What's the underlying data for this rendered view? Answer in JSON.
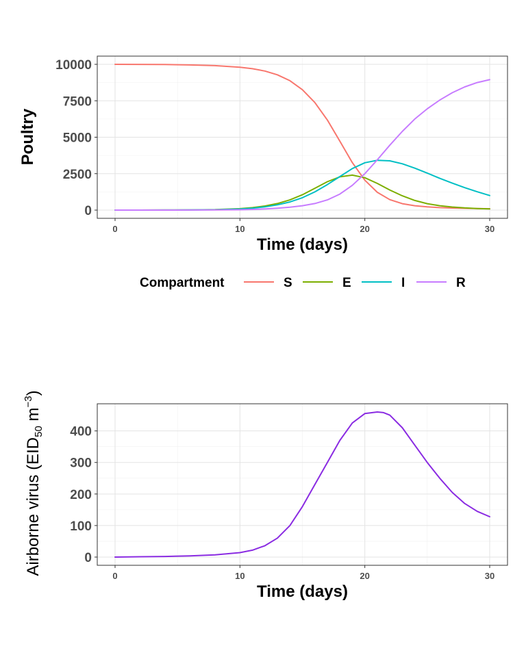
{
  "chart_data": [
    {
      "type": "line",
      "ylabel": "Poultry",
      "xlabel": "Time (days)",
      "xlim": [
        0,
        30
      ],
      "ylim": [
        0,
        10000
      ],
      "x_ticks": [
        0,
        10,
        20,
        30
      ],
      "y_ticks": [
        0,
        2500,
        5000,
        7500,
        10000
      ],
      "grid": true,
      "legend": {
        "title": "Compartment",
        "position": "bottom"
      },
      "x": [
        0,
        2,
        4,
        6,
        8,
        10,
        11,
        12,
        13,
        14,
        15,
        16,
        17,
        18,
        19,
        20,
        21,
        22,
        23,
        24,
        25,
        26,
        27,
        28,
        29,
        30
      ],
      "series": [
        {
          "name": "S",
          "color": "#F8766D",
          "values": [
            10000,
            9995,
            9985,
            9960,
            9910,
            9800,
            9700,
            9540,
            9280,
            8880,
            8260,
            7380,
            6180,
            4730,
            3260,
            2050,
            1220,
            720,
            440,
            300,
            220,
            170,
            140,
            120,
            105,
            95
          ]
        },
        {
          "name": "E",
          "color": "#7CAE00",
          "values": [
            0,
            2,
            5,
            12,
            35,
            100,
            170,
            280,
            450,
            700,
            1050,
            1500,
            1950,
            2280,
            2400,
            2220,
            1830,
            1380,
            980,
            660,
            440,
            300,
            210,
            150,
            110,
            85
          ]
        },
        {
          "name": "I",
          "color": "#00BFC4",
          "values": [
            0,
            1,
            3,
            8,
            25,
            75,
            130,
            220,
            360,
            560,
            850,
            1250,
            1750,
            2300,
            2850,
            3250,
            3420,
            3380,
            3180,
            2880,
            2540,
            2180,
            1850,
            1540,
            1260,
            1000
          ]
        },
        {
          "name": "R",
          "color": "#C77CFF",
          "values": [
            0,
            0,
            1,
            3,
            8,
            25,
            45,
            80,
            130,
            200,
            300,
            450,
            700,
            1100,
            1700,
            2500,
            3450,
            4450,
            5400,
            6250,
            6950,
            7550,
            8050,
            8450,
            8750,
            8950
          ]
        }
      ]
    },
    {
      "type": "line",
      "ylabel": {
        "prefix": "Airborne virus  (EID",
        "sub": "50",
        "middle": "  m",
        "sup": "−3",
        "suffix": ")"
      },
      "xlabel": "Time (days)",
      "xlim": [
        0,
        30
      ],
      "ylim": [
        0,
        460
      ],
      "x_ticks": [
        0,
        10,
        20,
        30
      ],
      "y_ticks": [
        0,
        100,
        200,
        300,
        400
      ],
      "grid": true,
      "x": [
        0,
        2,
        4,
        6,
        8,
        10,
        11,
        12,
        13,
        14,
        15,
        16,
        17,
        18,
        19,
        20,
        21,
        21.5,
        22,
        23,
        24,
        25,
        26,
        27,
        28,
        29,
        30
      ],
      "series": [
        {
          "color": "#8A2BE2",
          "values": [
            0,
            1,
            2,
            4,
            7,
            14,
            22,
            36,
            60,
            100,
            160,
            230,
            300,
            370,
            425,
            455,
            460,
            458,
            450,
            410,
            355,
            300,
            250,
            205,
            170,
            145,
            128
          ]
        }
      ]
    }
  ]
}
